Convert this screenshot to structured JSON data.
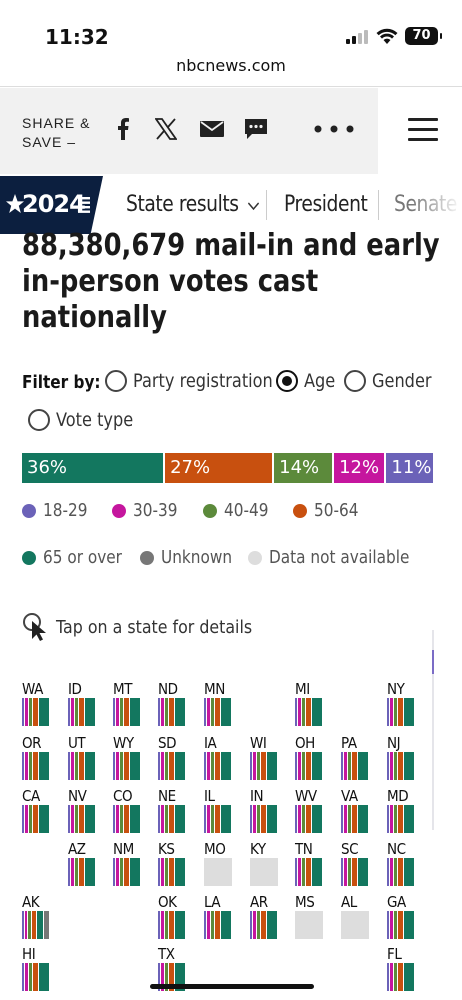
{
  "status_bar": {
    "time": "11:32",
    "battery": "70"
  },
  "browser": {
    "url": "nbcnews.com"
  },
  "share": {
    "label_line1": "SHARE &",
    "label_line2": "SAVE –"
  },
  "nav": {
    "badge": "2024",
    "items": [
      {
        "label": "State results",
        "has_dropdown": true
      },
      {
        "label": "President"
      },
      {
        "label": "Senate"
      }
    ]
  },
  "headline": {
    "line1": "88,380,679 mail-in and early",
    "line2": "in-person votes cast",
    "line3": "nationally"
  },
  "filter": {
    "label": "Filter by:",
    "options": [
      {
        "label": "Party registration",
        "selected": false
      },
      {
        "label": "Age",
        "selected": true
      },
      {
        "label": "Gender",
        "selected": false
      },
      {
        "label": "Vote type",
        "selected": false
      }
    ]
  },
  "colors": {
    "18-29": "#6b62b8",
    "30-39": "#c5169e",
    "40-49": "#5c8a3b",
    "50-64": "#c8500f",
    "65-or-over": "#13775f",
    "unknown": "#777777",
    "not-available": "#dddddd"
  },
  "age_breakdown": [
    {
      "group": "65 or over",
      "percent": 36,
      "label": "36%",
      "color": "#13775f"
    },
    {
      "group": "50-64",
      "percent": 27,
      "label": "27%",
      "color": "#c8500f"
    },
    {
      "group": "40-49",
      "percent": 14,
      "label": "14%",
      "color": "#5c8a3b"
    },
    {
      "group": "30-39",
      "percent": 12,
      "label": "12%",
      "color": "#c5169e"
    },
    {
      "group": "18-29",
      "percent": 11,
      "label": "11%",
      "color": "#6b62b8"
    }
  ],
  "legend": [
    {
      "label": "18-29",
      "color": "#6b62b8"
    },
    {
      "label": "30-39",
      "color": "#c5169e"
    },
    {
      "label": "40-49",
      "color": "#5c8a3b"
    },
    {
      "label": "50-64",
      "color": "#c8500f"
    },
    {
      "label": "65 or over",
      "color": "#13775f"
    },
    {
      "label": "Unknown",
      "color": "#777777"
    },
    {
      "label": "Data not available",
      "color": "#dddddd"
    }
  ],
  "tap_hint": "Tap on a state for details",
  "states": [
    {
      "abbr": "WA",
      "col": 0,
      "row": 0
    },
    {
      "abbr": "ID",
      "col": 1,
      "row": 0
    },
    {
      "abbr": "MT",
      "col": 2,
      "row": 0
    },
    {
      "abbr": "ND",
      "col": 3,
      "row": 0
    },
    {
      "abbr": "MN",
      "col": 4,
      "row": 0
    },
    {
      "abbr": "MI",
      "col": 6,
      "row": 0
    },
    {
      "abbr": "NY",
      "col": 8,
      "row": 0
    },
    {
      "abbr": "OR",
      "col": 0,
      "row": 1
    },
    {
      "abbr": "UT",
      "col": 1,
      "row": 1
    },
    {
      "abbr": "WY",
      "col": 2,
      "row": 1
    },
    {
      "abbr": "SD",
      "col": 3,
      "row": 1
    },
    {
      "abbr": "IA",
      "col": 4,
      "row": 1
    },
    {
      "abbr": "WI",
      "col": 5,
      "row": 1
    },
    {
      "abbr": "OH",
      "col": 6,
      "row": 1
    },
    {
      "abbr": "PA",
      "col": 7,
      "row": 1
    },
    {
      "abbr": "NJ",
      "col": 8,
      "row": 1
    },
    {
      "abbr": "CA",
      "col": 0,
      "row": 2
    },
    {
      "abbr": "NV",
      "col": 1,
      "row": 2
    },
    {
      "abbr": "CO",
      "col": 2,
      "row": 2
    },
    {
      "abbr": "NE",
      "col": 3,
      "row": 2
    },
    {
      "abbr": "IL",
      "col": 4,
      "row": 2
    },
    {
      "abbr": "IN",
      "col": 5,
      "row": 2
    },
    {
      "abbr": "WV",
      "col": 6,
      "row": 2
    },
    {
      "abbr": "VA",
      "col": 7,
      "row": 2
    },
    {
      "abbr": "MD",
      "col": 8,
      "row": 2
    },
    {
      "abbr": "AZ",
      "col": 1,
      "row": 3
    },
    {
      "abbr": "NM",
      "col": 2,
      "row": 3
    },
    {
      "abbr": "KS",
      "col": 3,
      "row": 3
    },
    {
      "abbr": "MO",
      "col": 4,
      "row": 3,
      "na": true
    },
    {
      "abbr": "KY",
      "col": 5,
      "row": 3,
      "na": true
    },
    {
      "abbr": "TN",
      "col": 6,
      "row": 3
    },
    {
      "abbr": "SC",
      "col": 7,
      "row": 3
    },
    {
      "abbr": "NC",
      "col": 8,
      "row": 3
    },
    {
      "abbr": "AK",
      "col": 0,
      "row": 4,
      "unknown": true
    },
    {
      "abbr": "OK",
      "col": 3,
      "row": 4
    },
    {
      "abbr": "LA",
      "col": 4,
      "row": 4
    },
    {
      "abbr": "AR",
      "col": 5,
      "row": 4
    },
    {
      "abbr": "MS",
      "col": 6,
      "row": 4,
      "na": true
    },
    {
      "abbr": "AL",
      "col": 7,
      "row": 4,
      "na": true
    },
    {
      "abbr": "GA",
      "col": 8,
      "row": 4
    },
    {
      "abbr": "HI",
      "col": 0,
      "row": 5
    },
    {
      "abbr": "TX",
      "col": 3,
      "row": 5
    },
    {
      "abbr": "FL",
      "col": 8,
      "row": 5
    }
  ]
}
